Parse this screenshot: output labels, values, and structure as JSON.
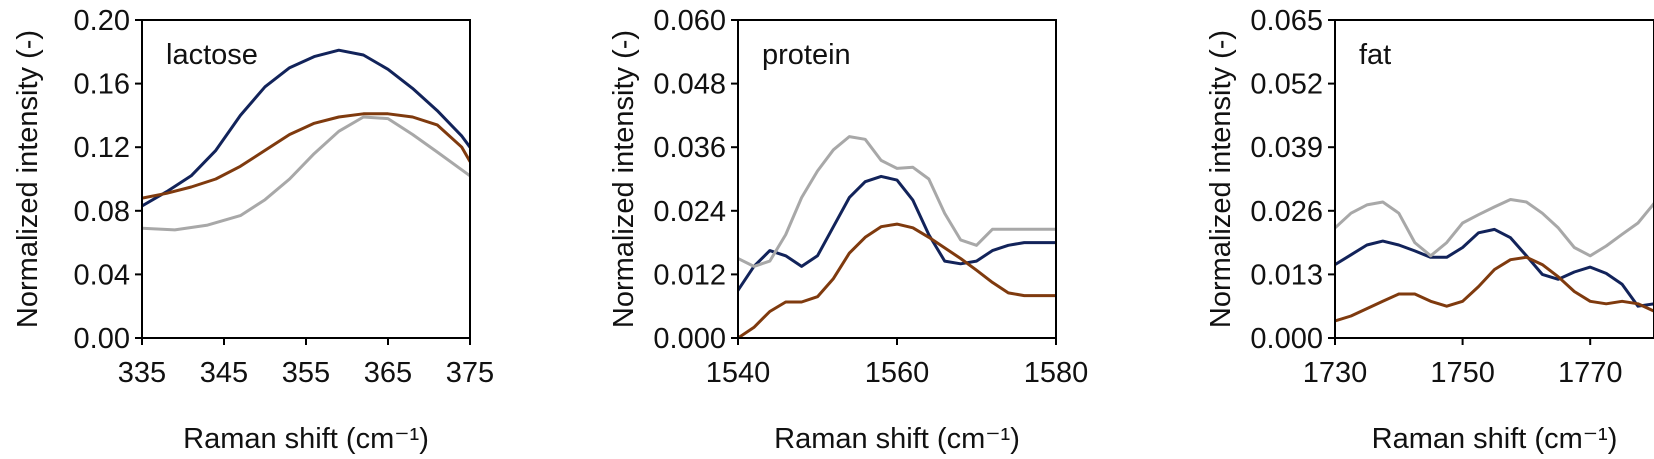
{
  "colors": {
    "s1": "#12235a",
    "s2": "#7f3a0e",
    "s3": "#a8a8a8",
    "axis": "#000000",
    "text": "#111111"
  },
  "chart_data": [
    {
      "type": "line",
      "title": "lactose",
      "xlabel": "Raman shift (cm⁻¹)",
      "ylabel": "Normalized intensity (-)",
      "xlim": [
        335,
        375
      ],
      "ylim": [
        0,
        0.2
      ],
      "xticks": [
        "335",
        "345",
        "355",
        "365",
        "375"
      ],
      "yticks": [
        "0.00",
        "0.04",
        "0.08",
        "0.12",
        "0.16",
        "0.20"
      ],
      "grid": false,
      "legend": "none",
      "series": [
        {
          "color": "#12235a",
          "x": [
            335,
            338,
            341,
            344,
            347,
            350,
            353,
            356,
            359,
            362,
            365,
            368,
            371,
            374,
            375
          ],
          "y": [
            0.083,
            0.092,
            0.102,
            0.118,
            0.14,
            0.158,
            0.17,
            0.177,
            0.181,
            0.178,
            0.169,
            0.157,
            0.143,
            0.127,
            0.12
          ]
        },
        {
          "color": "#7f3a0e",
          "x": [
            335,
            338,
            341,
            344,
            347,
            350,
            353,
            356,
            359,
            362,
            365,
            368,
            371,
            374,
            375
          ],
          "y": [
            0.088,
            0.091,
            0.095,
            0.1,
            0.108,
            0.118,
            0.128,
            0.135,
            0.139,
            0.141,
            0.141,
            0.139,
            0.134,
            0.12,
            0.111
          ]
        },
        {
          "color": "#a8a8a8",
          "x": [
            335,
            339,
            343,
            347,
            350,
            353,
            356,
            359,
            362,
            365,
            368,
            371,
            375
          ],
          "y": [
            0.069,
            0.068,
            0.071,
            0.077,
            0.087,
            0.1,
            0.116,
            0.13,
            0.139,
            0.138,
            0.128,
            0.117,
            0.102
          ]
        }
      ]
    },
    {
      "type": "line",
      "title": "protein",
      "xlabel": "Raman shift (cm⁻¹)",
      "ylabel": "Normalized intensity (-)",
      "xlim": [
        1540,
        1580
      ],
      "ylim": [
        0,
        0.06
      ],
      "xticks": [
        "1540",
        "1560",
        "1580"
      ],
      "yticks": [
        "0.000",
        "0.012",
        "0.024",
        "0.036",
        "0.048",
        "0.060"
      ],
      "grid": false,
      "legend": "none",
      "series": [
        {
          "color": "#12235a",
          "x": [
            1540,
            1542,
            1544,
            1546,
            1548,
            1550,
            1552,
            1554,
            1556,
            1558,
            1560,
            1562,
            1564,
            1566,
            1568,
            1570,
            1572,
            1574,
            1576,
            1578,
            1580
          ],
          "y": [
            0.009,
            0.0135,
            0.0165,
            0.0155,
            0.0135,
            0.0155,
            0.021,
            0.0265,
            0.0295,
            0.0305,
            0.0298,
            0.026,
            0.0195,
            0.0145,
            0.014,
            0.0145,
            0.0165,
            0.0175,
            0.018,
            0.018,
            0.018
          ]
        },
        {
          "color": "#7f3a0e",
          "x": [
            1540,
            1542,
            1544,
            1546,
            1548,
            1550,
            1552,
            1554,
            1556,
            1558,
            1560,
            1562,
            1564,
            1566,
            1568,
            1570,
            1572,
            1574,
            1576,
            1578,
            1580
          ],
          "y": [
            0.0,
            0.002,
            0.005,
            0.0068,
            0.0068,
            0.0078,
            0.0112,
            0.016,
            0.019,
            0.021,
            0.0215,
            0.0208,
            0.019,
            0.017,
            0.015,
            0.0128,
            0.0105,
            0.0085,
            0.008,
            0.008,
            0.008
          ]
        },
        {
          "color": "#a8a8a8",
          "x": [
            1540,
            1542,
            1544,
            1546,
            1548,
            1550,
            1552,
            1554,
            1556,
            1558,
            1560,
            1562,
            1564,
            1566,
            1568,
            1570,
            1572,
            1574,
            1576,
            1578,
            1580
          ],
          "y": [
            0.015,
            0.0135,
            0.0145,
            0.0195,
            0.0265,
            0.0315,
            0.0355,
            0.038,
            0.0375,
            0.0335,
            0.032,
            0.0322,
            0.03,
            0.0235,
            0.0185,
            0.0175,
            0.0205,
            0.0205,
            0.0205,
            0.0205,
            0.0205
          ]
        }
      ]
    },
    {
      "type": "line",
      "title": "fat",
      "xlabel": "Raman shift (cm⁻¹)",
      "ylabel": "Normalized intensity (-)",
      "xlim": [
        1730,
        1780
      ],
      "ylim": [
        0,
        0.065
      ],
      "xticks": [
        "1730",
        "1750",
        "1770"
      ],
      "yticks": [
        "0.000",
        "0.013",
        "0.026",
        "0.039",
        "0.052",
        "0.065"
      ],
      "grid": false,
      "legend": "none",
      "series": [
        {
          "color": "#12235a",
          "x": [
            1730,
            1732.5,
            1735,
            1737.5,
            1740,
            1742.5,
            1745,
            1747.5,
            1750,
            1752.5,
            1755,
            1757.5,
            1760,
            1762.5,
            1765,
            1767.5,
            1770,
            1772.5,
            1775,
            1777.5,
            1780
          ],
          "y": [
            0.015,
            0.017,
            0.019,
            0.0198,
            0.019,
            0.0178,
            0.0165,
            0.0165,
            0.0185,
            0.0215,
            0.0222,
            0.0205,
            0.0168,
            0.013,
            0.012,
            0.0135,
            0.0145,
            0.0132,
            0.011,
            0.0065,
            0.007
          ]
        },
        {
          "color": "#7f3a0e",
          "x": [
            1730,
            1732.5,
            1735,
            1737.5,
            1740,
            1742.5,
            1745,
            1747.5,
            1750,
            1752.5,
            1755,
            1757.5,
            1760,
            1762.5,
            1765,
            1767.5,
            1770,
            1772.5,
            1775,
            1777.5,
            1780
          ],
          "y": [
            0.0035,
            0.0045,
            0.006,
            0.0075,
            0.009,
            0.009,
            0.0075,
            0.0065,
            0.0075,
            0.0105,
            0.014,
            0.016,
            0.0165,
            0.015,
            0.0125,
            0.0095,
            0.0075,
            0.007,
            0.0075,
            0.007,
            0.0055
          ]
        },
        {
          "color": "#a8a8a8",
          "x": [
            1730,
            1732.5,
            1735,
            1737.5,
            1740,
            1742.5,
            1745,
            1747.5,
            1750,
            1752.5,
            1755,
            1757.5,
            1760,
            1762.5,
            1765,
            1767.5,
            1770,
            1772.5,
            1775,
            1777.5,
            1780
          ],
          "y": [
            0.0225,
            0.0255,
            0.0272,
            0.0278,
            0.0255,
            0.0195,
            0.0168,
            0.0195,
            0.0235,
            0.0252,
            0.0268,
            0.0283,
            0.0278,
            0.0255,
            0.0225,
            0.0185,
            0.0168,
            0.0188,
            0.0212,
            0.0235,
            0.0275
          ]
        }
      ]
    }
  ]
}
